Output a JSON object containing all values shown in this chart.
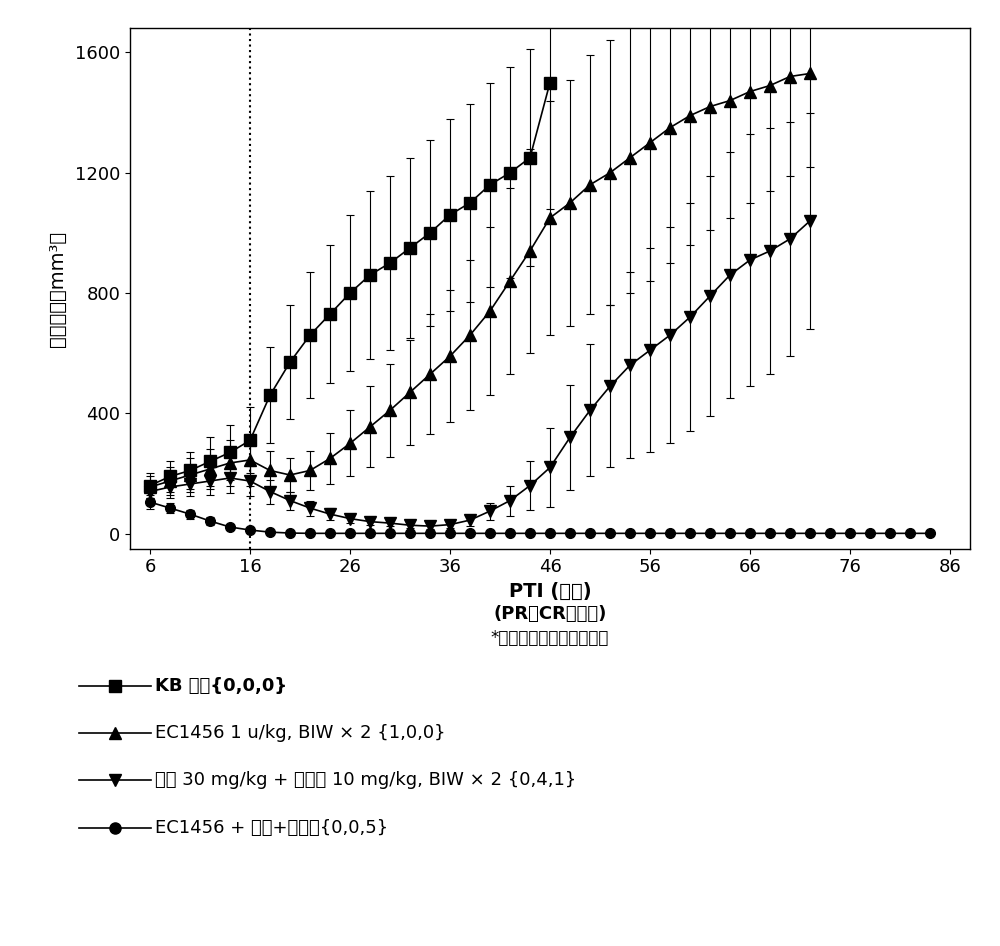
{
  "ylabel": "胿瘤体积（mm³）",
  "xlabel_line1": "PTI (天数)",
  "xlabel_line2": "(PR、CR、治愈)",
  "xlabel_line3": "*虚线表示最终给药的日子",
  "xlim": [
    4,
    88
  ],
  "ylim": [
    -50,
    1680
  ],
  "xticks": [
    6,
    16,
    26,
    36,
    46,
    56,
    66,
    76,
    86
  ],
  "yticks": [
    0,
    400,
    800,
    1200,
    1600
  ],
  "dotted_line_x": 16,
  "series": [
    {
      "label": "KB 对照{0,0,0}",
      "marker": "s",
      "x": [
        6,
        8,
        10,
        12,
        14,
        16,
        18,
        20,
        22,
        24,
        26,
        28,
        30,
        32,
        34,
        36,
        38,
        40,
        42,
        44,
        46
      ],
      "y": [
        160,
        190,
        210,
        240,
        270,
        310,
        460,
        570,
        660,
        730,
        800,
        860,
        900,
        950,
        1000,
        1060,
        1100,
        1160,
        1200,
        1250,
        1500
      ],
      "yerr": [
        40,
        50,
        60,
        80,
        90,
        110,
        160,
        190,
        210,
        230,
        260,
        280,
        290,
        300,
        310,
        320,
        330,
        340,
        350,
        360,
        420
      ]
    },
    {
      "label": "EC1456 1 u/kg, BIW × 2 {1,0,0}",
      "marker": "^",
      "x": [
        6,
        8,
        10,
        12,
        14,
        16,
        18,
        20,
        22,
        24,
        26,
        28,
        30,
        32,
        34,
        36,
        38,
        40,
        42,
        44,
        46,
        48,
        50,
        52,
        54,
        56,
        58,
        60,
        62,
        64,
        66,
        68,
        70,
        72
      ],
      "y": [
        155,
        175,
        195,
        215,
        235,
        245,
        210,
        195,
        210,
        250,
        300,
        355,
        410,
        470,
        530,
        590,
        660,
        740,
        840,
        940,
        1050,
        1100,
        1160,
        1200,
        1250,
        1300,
        1350,
        1390,
        1420,
        1440,
        1470,
        1490,
        1520,
        1530
      ],
      "yerr": [
        35,
        45,
        55,
        65,
        75,
        85,
        65,
        55,
        65,
        85,
        110,
        135,
        155,
        175,
        200,
        220,
        250,
        280,
        310,
        340,
        390,
        410,
        430,
        440,
        450,
        460,
        450,
        430,
        410,
        390,
        370,
        350,
        330,
        310
      ]
    },
    {
      "label": "卡铂 30 mg/kg + 紫杉醇 10 mg/kg, BIW × 2 {0,4,1}",
      "marker": "v",
      "x": [
        6,
        8,
        10,
        12,
        14,
        16,
        18,
        20,
        22,
        24,
        26,
        28,
        30,
        32,
        34,
        36,
        38,
        40,
        42,
        44,
        46,
        48,
        50,
        52,
        54,
        56,
        58,
        60,
        62,
        64,
        66,
        68,
        70,
        72
      ],
      "y": [
        140,
        155,
        165,
        175,
        185,
        175,
        140,
        110,
        85,
        65,
        50,
        40,
        35,
        28,
        25,
        30,
        45,
        75,
        110,
        160,
        220,
        320,
        410,
        490,
        560,
        610,
        660,
        720,
        790,
        860,
        910,
        940,
        980,
        1040
      ],
      "yerr": [
        30,
        35,
        40,
        45,
        50,
        50,
        40,
        30,
        25,
        20,
        15,
        10,
        10,
        8,
        8,
        12,
        18,
        28,
        50,
        80,
        130,
        175,
        220,
        270,
        310,
        340,
        360,
        380,
        400,
        410,
        420,
        410,
        390,
        360
      ]
    },
    {
      "label": "EC1456 + 卡铂+紫杉醇{0,0,5}",
      "marker": "o",
      "x": [
        6,
        8,
        10,
        12,
        14,
        16,
        18,
        20,
        22,
        24,
        26,
        28,
        30,
        32,
        34,
        36,
        38,
        40,
        42,
        44,
        46,
        48,
        50,
        52,
        54,
        56,
        58,
        60,
        62,
        64,
        66,
        68,
        70,
        72,
        74,
        76,
        78,
        80,
        82,
        84
      ],
      "y": [
        105,
        85,
        65,
        42,
        22,
        12,
        5,
        2,
        1,
        1,
        1,
        1,
        1,
        1,
        1,
        1,
        1,
        1,
        1,
        1,
        1,
        1,
        1,
        1,
        1,
        1,
        1,
        1,
        1,
        1,
        1,
        1,
        1,
        1,
        1,
        1,
        1,
        1,
        1,
        1
      ],
      "yerr": [
        22,
        18,
        15,
        12,
        8,
        5,
        3,
        2,
        1,
        1,
        1,
        1,
        1,
        1,
        1,
        1,
        1,
        1,
        1,
        1,
        1,
        1,
        1,
        1,
        1,
        1,
        1,
        1,
        1,
        1,
        1,
        1,
        1,
        1,
        1,
        1,
        1,
        1,
        1,
        1
      ]
    }
  ],
  "legend_entries": [
    {
      "label": "KB 对照{0,0,0}",
      "marker": "s",
      "bold": true
    },
    {
      "label": "EC1456 1 u/kg, BIW × 2 {1,0,0}",
      "marker": "^",
      "bold": false
    },
    {
      "label": "卡铂 30 mg/kg + 紫杉醇 10 mg/kg, BIW × 2 {0,4,1}",
      "marker": "v",
      "bold": false
    },
    {
      "label": "EC1456 + 卡铂+紫杉醇{0,0,5}",
      "marker": "o",
      "bold": false
    }
  ],
  "markersize": 7,
  "linewidth": 1.2,
  "elinewidth": 0.8,
  "capsize": 3
}
